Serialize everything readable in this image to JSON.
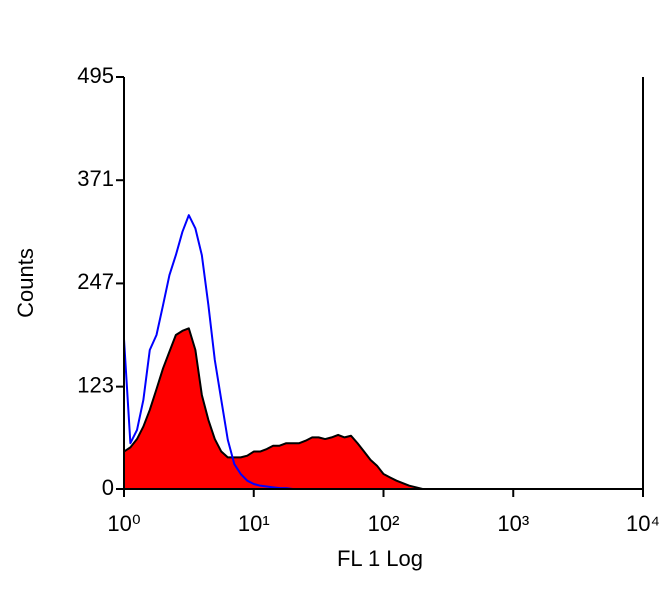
{
  "chart_data": {
    "type": "histogram-area",
    "x_label": "FL 1 Log",
    "y_label": "Counts",
    "log_x": true,
    "xlim": [
      1,
      10000
    ],
    "xticks": [
      {
        "value": 1,
        "label": "10⁰"
      },
      {
        "value": 10,
        "label": "10¹"
      },
      {
        "value": 100,
        "label": "10²"
      },
      {
        "value": 1000,
        "label": "10³"
      },
      {
        "value": 10000,
        "label": "10⁴"
      }
    ],
    "ylim": [
      0,
      495
    ],
    "yticks": [
      0,
      123,
      247,
      371,
      495
    ],
    "x": [
      1,
      1.12,
      1.26,
      1.41,
      1.58,
      1.78,
      2,
      2.24,
      2.51,
      2.82,
      3.16,
      3.55,
      3.98,
      4.47,
      5.01,
      5.62,
      6.31,
      7.08,
      7.94,
      8.91,
      10,
      11.2,
      12.6,
      14.1,
      15.8,
      17.8,
      20,
      22.4,
      25.1,
      28.2,
      31.6,
      35.5,
      39.8,
      44.7,
      50.1,
      56.2,
      63.1,
      70.8,
      79.4,
      89.1,
      100,
      112,
      126,
      141,
      158,
      178,
      200
    ],
    "series": [
      {
        "style": "filled",
        "color": "#ff0000",
        "edge_color": "#000000",
        "values": [
          45,
          50,
          60,
          75,
          95,
          120,
          145,
          165,
          185,
          190,
          193,
          167,
          113,
          83,
          60,
          45,
          38,
          38,
          38,
          40,
          45,
          45,
          48,
          52,
          52,
          55,
          55,
          55,
          58,
          62,
          62,
          60,
          62,
          65,
          62,
          64,
          55,
          45,
          35,
          28,
          18,
          14,
          10,
          7,
          4,
          2,
          0
        ]
      },
      {
        "style": "line",
        "color": "#0000ff",
        "values": [
          180,
          55,
          71,
          107,
          167,
          185,
          221,
          257,
          281,
          309,
          329,
          313,
          281,
          221,
          155,
          107,
          59,
          30,
          18,
          10,
          6,
          4,
          3,
          2,
          1,
          1,
          0,
          null,
          null,
          null,
          null,
          null,
          null,
          null,
          null,
          null,
          null,
          null,
          null,
          null,
          null,
          null,
          null,
          null,
          null,
          null,
          null
        ]
      }
    ]
  }
}
